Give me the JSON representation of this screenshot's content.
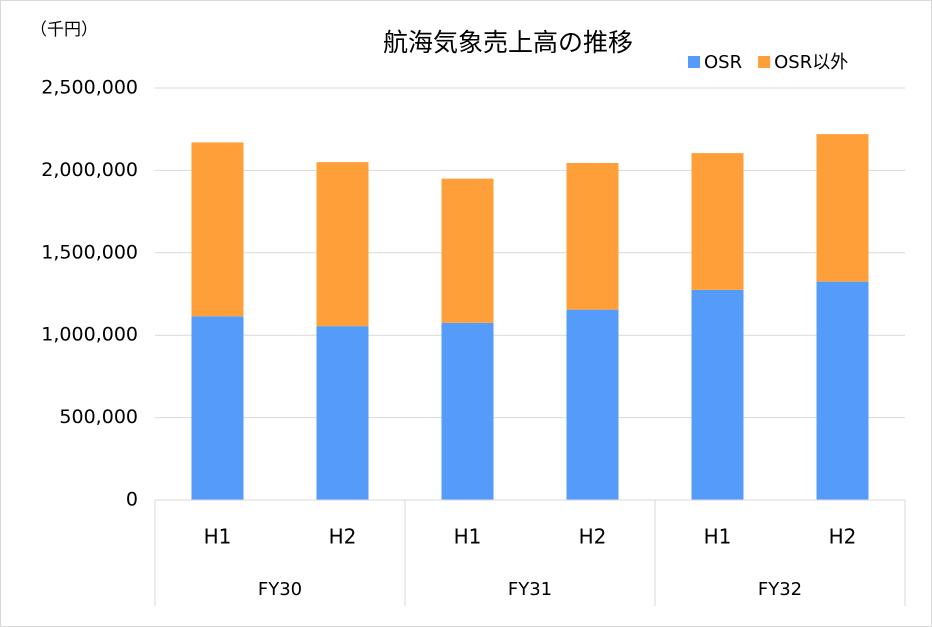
{
  "chart_data": {
    "type": "stacked_bar",
    "title": "航海気象売上高の推移",
    "unit_label": "（千円）",
    "categories": [
      "H1",
      "H2",
      "H1",
      "H2",
      "H1",
      "H2"
    ],
    "groups": [
      "FY30",
      "FY31",
      "FY32"
    ],
    "series": [
      {
        "name": "OSR",
        "color": "#559bfa",
        "values": [
          1115000,
          1055000,
          1075000,
          1155000,
          1275000,
          1325000
        ]
      },
      {
        "name": "OSR以外",
        "color": "#ff9f3a",
        "values": [
          1055000,
          995000,
          875000,
          890000,
          830000,
          895000
        ]
      }
    ],
    "ylim": [
      0,
      2500000
    ],
    "yticks": [
      0,
      {
        "value": 500000,
        "label": "500,000"
      },
      {
        "value": 1000000,
        "label": "1,000,000"
      },
      {
        "value": 1500000,
        "label": "1,500,000"
      },
      {
        "value": 2000000,
        "label": "2,000,000"
      },
      {
        "value": 2500000,
        "label": "2,500,000"
      }
    ],
    "grid": true,
    "legend": "top-right"
  }
}
